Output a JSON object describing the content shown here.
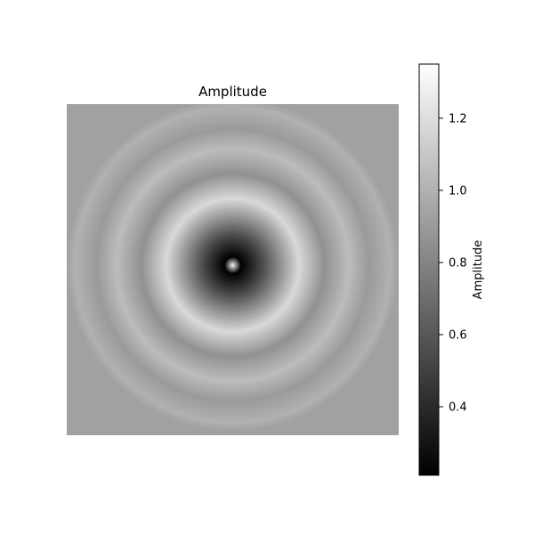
{
  "chart_data": {
    "type": "heatmap",
    "title": "Amplitude",
    "description_pattern": "concentric-rings",
    "colormap": "gray",
    "grid": false,
    "value_range": [
      0.21,
      1.35
    ],
    "center_value": 1.3,
    "background_value": 0.93,
    "rings": [
      {
        "radius_fraction": 0.0,
        "value": 1.3
      },
      {
        "radius_fraction": 0.05,
        "value": 0.21
      },
      {
        "radius_fraction": 0.18,
        "value": 0.55
      },
      {
        "radius_fraction": 0.4,
        "value": 1.18
      },
      {
        "radius_fraction": 0.55,
        "value": 0.86
      },
      {
        "radius_fraction": 0.7,
        "value": 1.05
      },
      {
        "radius_fraction": 0.82,
        "value": 0.9
      },
      {
        "radius_fraction": 0.95,
        "value": 1.0
      }
    ],
    "colorbar": {
      "label": "Amplitude",
      "ticks": [
        0.4,
        0.6,
        0.8,
        1.0,
        1.2
      ],
      "tick_labels": [
        "0.4",
        "0.6",
        "0.8",
        "1.0",
        "1.2"
      ],
      "range": [
        0.21,
        1.35
      ]
    }
  }
}
